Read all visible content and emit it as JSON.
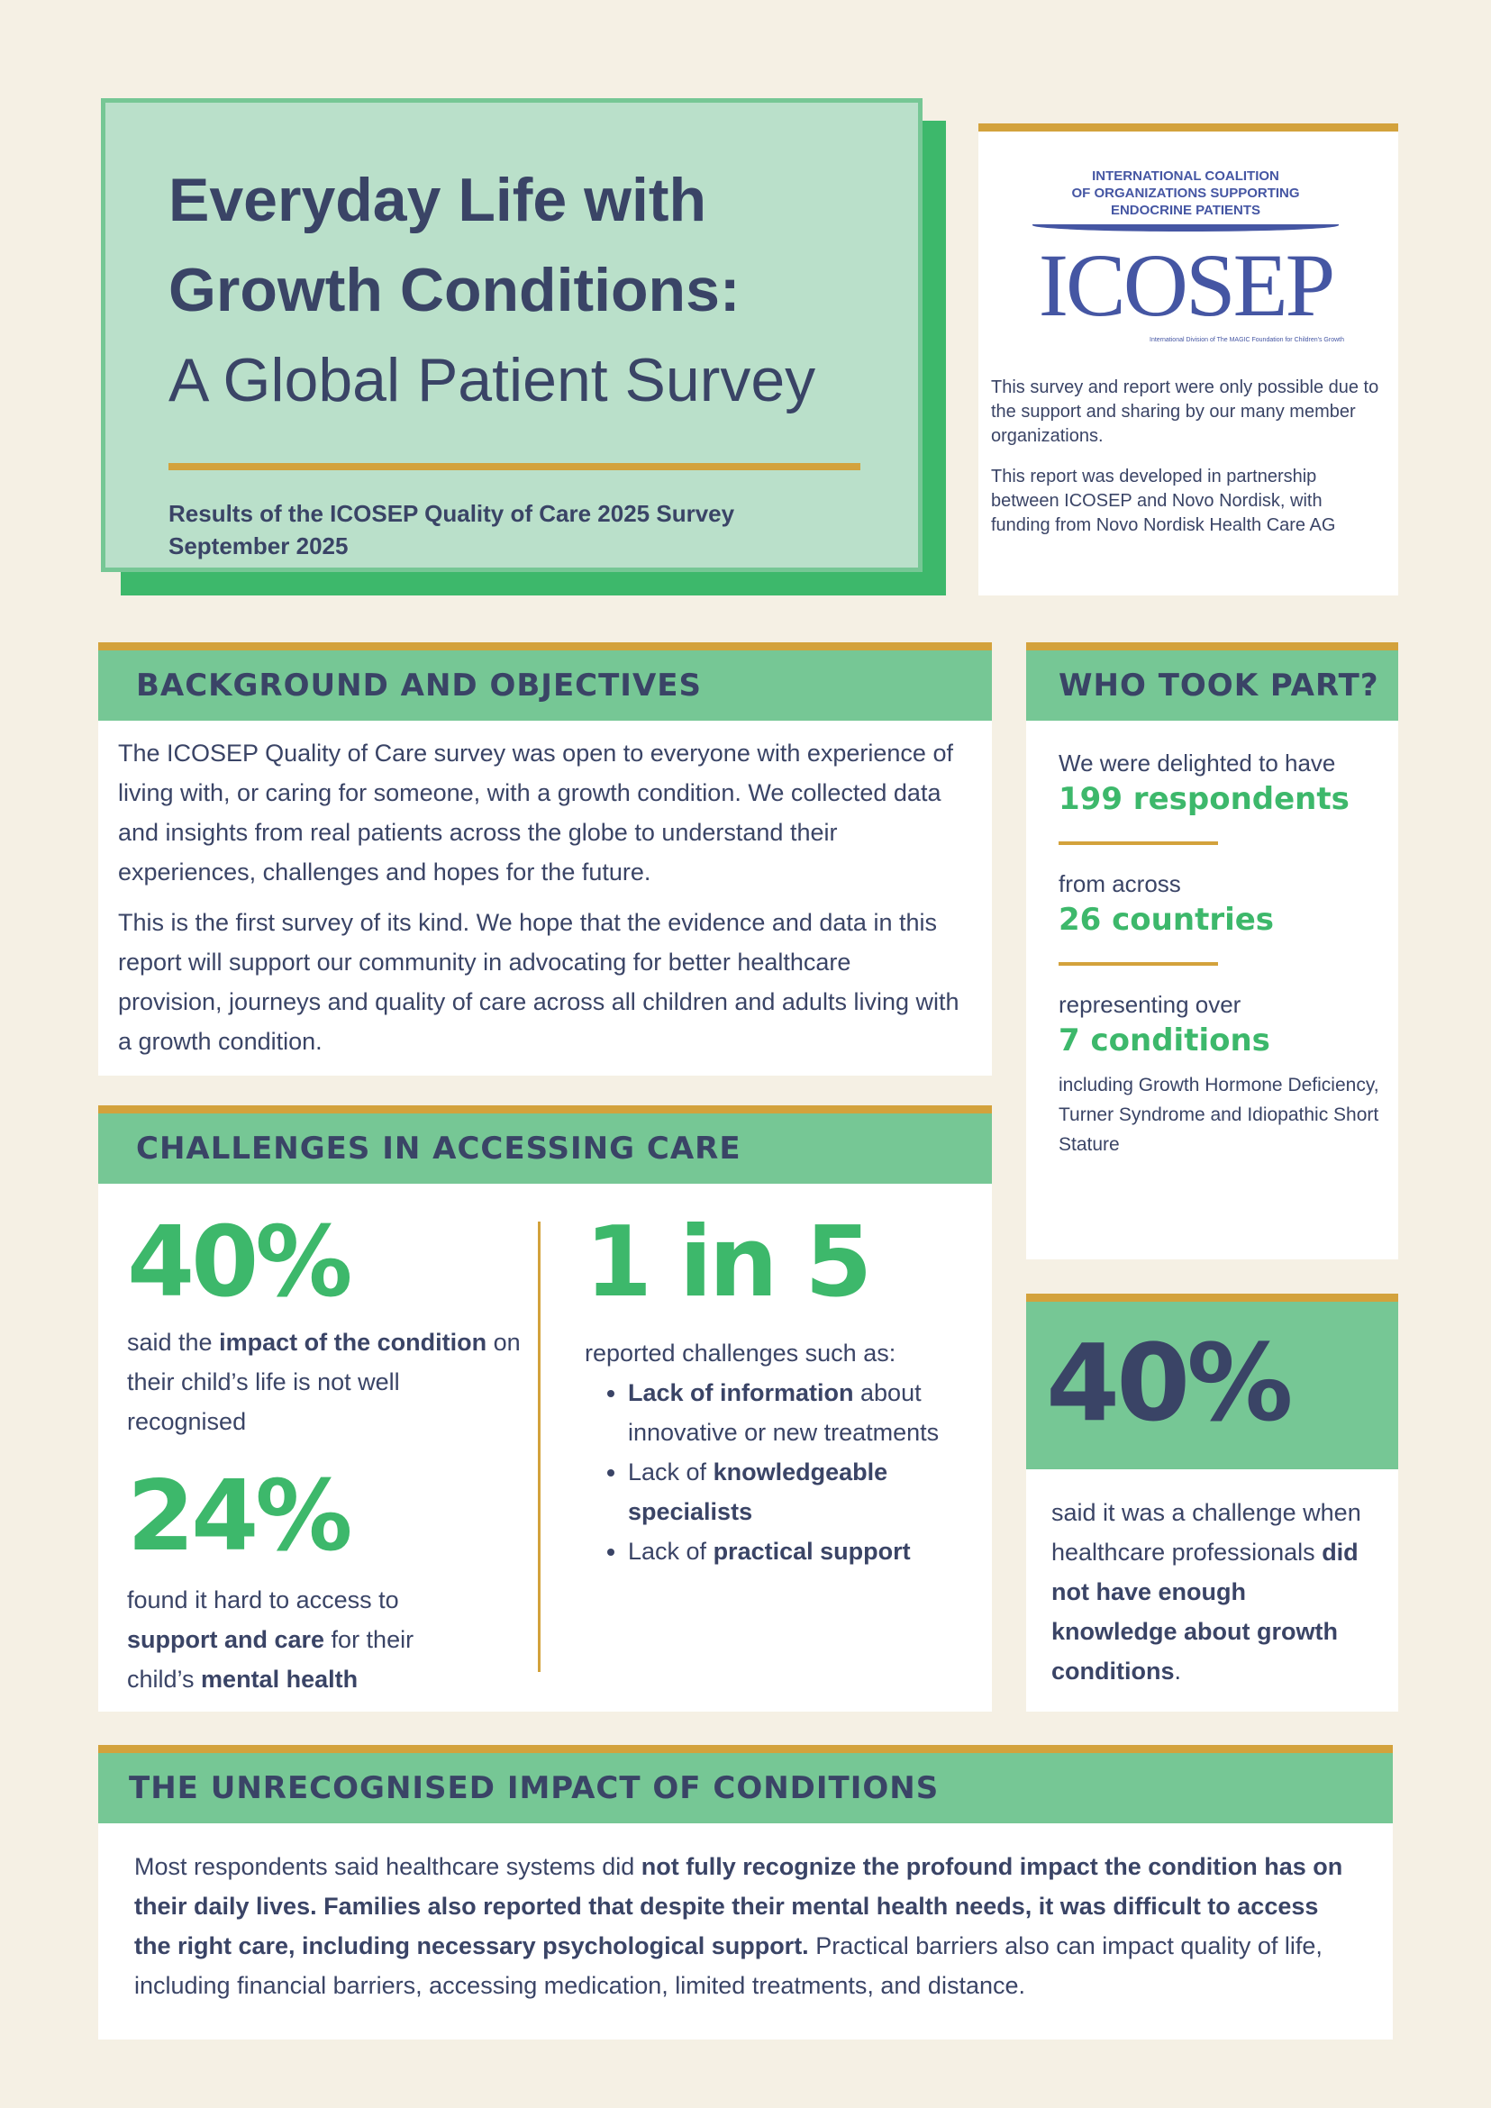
{
  "title": {
    "line1": "Everyday Life with",
    "line2": "Growth Conditions:",
    "line3": "A Global Patient Survey",
    "subtitle": "Results of the ICOSEP Quality of Care 2025 Survey",
    "date": "September 2025"
  },
  "logo": {
    "org_line1": "International Coalition",
    "org_line2": "of Organizations Supporting",
    "org_line3": "Endocrine Patients",
    "wordmark": "ICOSEP",
    "tagline": "International Division of The MAGIC Foundation for Children's Growth"
  },
  "sponsor": {
    "para1": "This survey and report were only possible due to the support and sharing by our many member organizations.",
    "para2": "This report was developed in partnership between ICOSEP and Novo Nordisk, with funding from Novo Nordisk Health Care AG"
  },
  "background": {
    "heading": "BACKGROUND AND OBJECTIVES",
    "para1": "The ICOSEP Quality of Care survey was open to everyone with experience of living with, or caring for someone, with a growth condition. We collected data and insights from real patients across the globe to understand their experiences, challenges and hopes for the future.",
    "para2": "This is the first survey of its kind. We hope that the evidence and data in this report will support our community in advocating for better healthcare provision, journeys and quality of care across all children and adults living with a growth condition."
  },
  "who": {
    "heading": "WHO TOOK PART?",
    "intro1": "We were delighted to have",
    "stat1": "199 respondents",
    "intro2": "from across",
    "stat2": "26 countries",
    "intro3": "representing over",
    "stat3": "7 conditions",
    "note": "including Growth Hormone Deficiency, Turner Syndrome and Idiopathic Short Stature"
  },
  "challenges": {
    "heading": "CHALLENGES IN ACCESSING CARE",
    "stat1": "40%",
    "stat1_pre": "said the ",
    "stat1_bold": "impact of the condition",
    "stat1_post": " on their child’s life is not well recognised",
    "stat2": "24%",
    "stat2_pre": "found it hard to access to ",
    "stat2_bold1": "support and care",
    "stat2_mid": " for their child’s ",
    "stat2_bold2": "mental health",
    "stat3": "1 in 5",
    "stat3_intro": "reported challenges such as:",
    "bullets": [
      {
        "bold": "Lack of information",
        "post": " about innovative or new treatments"
      },
      {
        "pre": "Lack of ",
        "bold": "knowledgeable specialists"
      },
      {
        "pre": "Lack of ",
        "bold": "practical support"
      }
    ]
  },
  "hcp": {
    "stat": "40%",
    "pre": "said it was a challenge when healthcare professionals ",
    "bold": "did not have enough knowledge about growth conditions",
    "post": "."
  },
  "impact": {
    "heading": "THE UNRECOGNISED IMPACT OF CONDITIONS",
    "pre": "Most respondents said healthcare systems did ",
    "bold": "not fully recognize the profound impact the condition has on their daily lives. Families also reported that despite their mental health needs, it was difficult to access the right care, including necessary psychological support.",
    "post": " Practical barriers also can impact quality of life, including financial barriers, accessing medication, limited treatments, and distance."
  },
  "colors": {
    "navy": "#3a4466",
    "green": "#3db86b",
    "header_green": "#76c795",
    "gold": "#d3a23c",
    "title_bg": "#bae0ca"
  }
}
